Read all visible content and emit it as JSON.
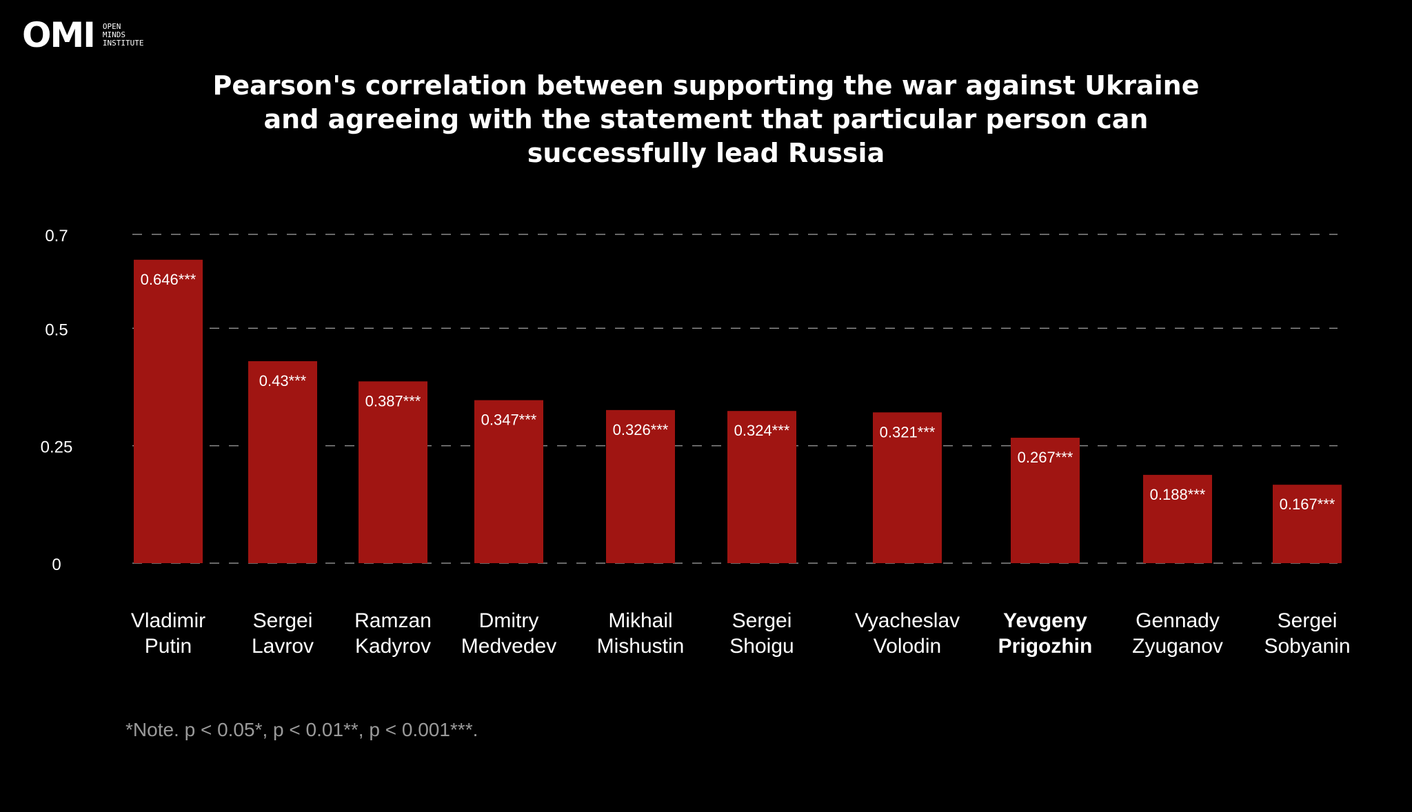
{
  "logo": {
    "mark": "OMI",
    "line1": "OPEN",
    "line2": "MINDS",
    "line3": "INSTITUTE"
  },
  "chart_data": {
    "type": "bar",
    "title_lines": [
      "Pearson's correlation between supporting the war against Ukraine",
      "and agreeing with the statement that particular person can",
      "successfully lead Russia"
    ],
    "categories": [
      [
        "Vladimir",
        "Putin"
      ],
      [
        "Sergei",
        "Lavrov"
      ],
      [
        "Ramzan",
        "Kadyrov"
      ],
      [
        "Dmitry",
        "Medvedev"
      ],
      [
        "Mikhail",
        "Mishustin"
      ],
      [
        "Sergei",
        "Shoigu"
      ],
      [
        "Vyacheslav",
        "Volodin"
      ],
      [
        "Yevgeny",
        "Prigozhin"
      ],
      [
        "Gennady",
        "Zyuganov"
      ],
      [
        "Sergei",
        "Sobyanin"
      ]
    ],
    "highlighted_category": 7,
    "values": [
      0.646,
      0.43,
      0.387,
      0.347,
      0.326,
      0.324,
      0.321,
      0.267,
      0.188,
      0.167
    ],
    "data_labels": [
      "0.646***",
      "0.43***",
      "0.387***",
      "0.347***",
      "0.326***",
      "0.324***",
      "0.321***",
      "0.267***",
      "0.188***",
      "0.167***"
    ],
    "y_ticks": [
      0,
      0.25,
      0.5,
      0.7
    ],
    "y_tick_labels": [
      "0",
      "0.25",
      "0.5",
      "0.7"
    ],
    "ylim": [
      0,
      0.7
    ],
    "grid": true,
    "bar_color": "#a01512",
    "grid_color": "#8a8a8a",
    "xlabel": "",
    "ylabel": ""
  },
  "note": "*Note. p < 0.05*, p < 0.01**, p < 0.001***."
}
